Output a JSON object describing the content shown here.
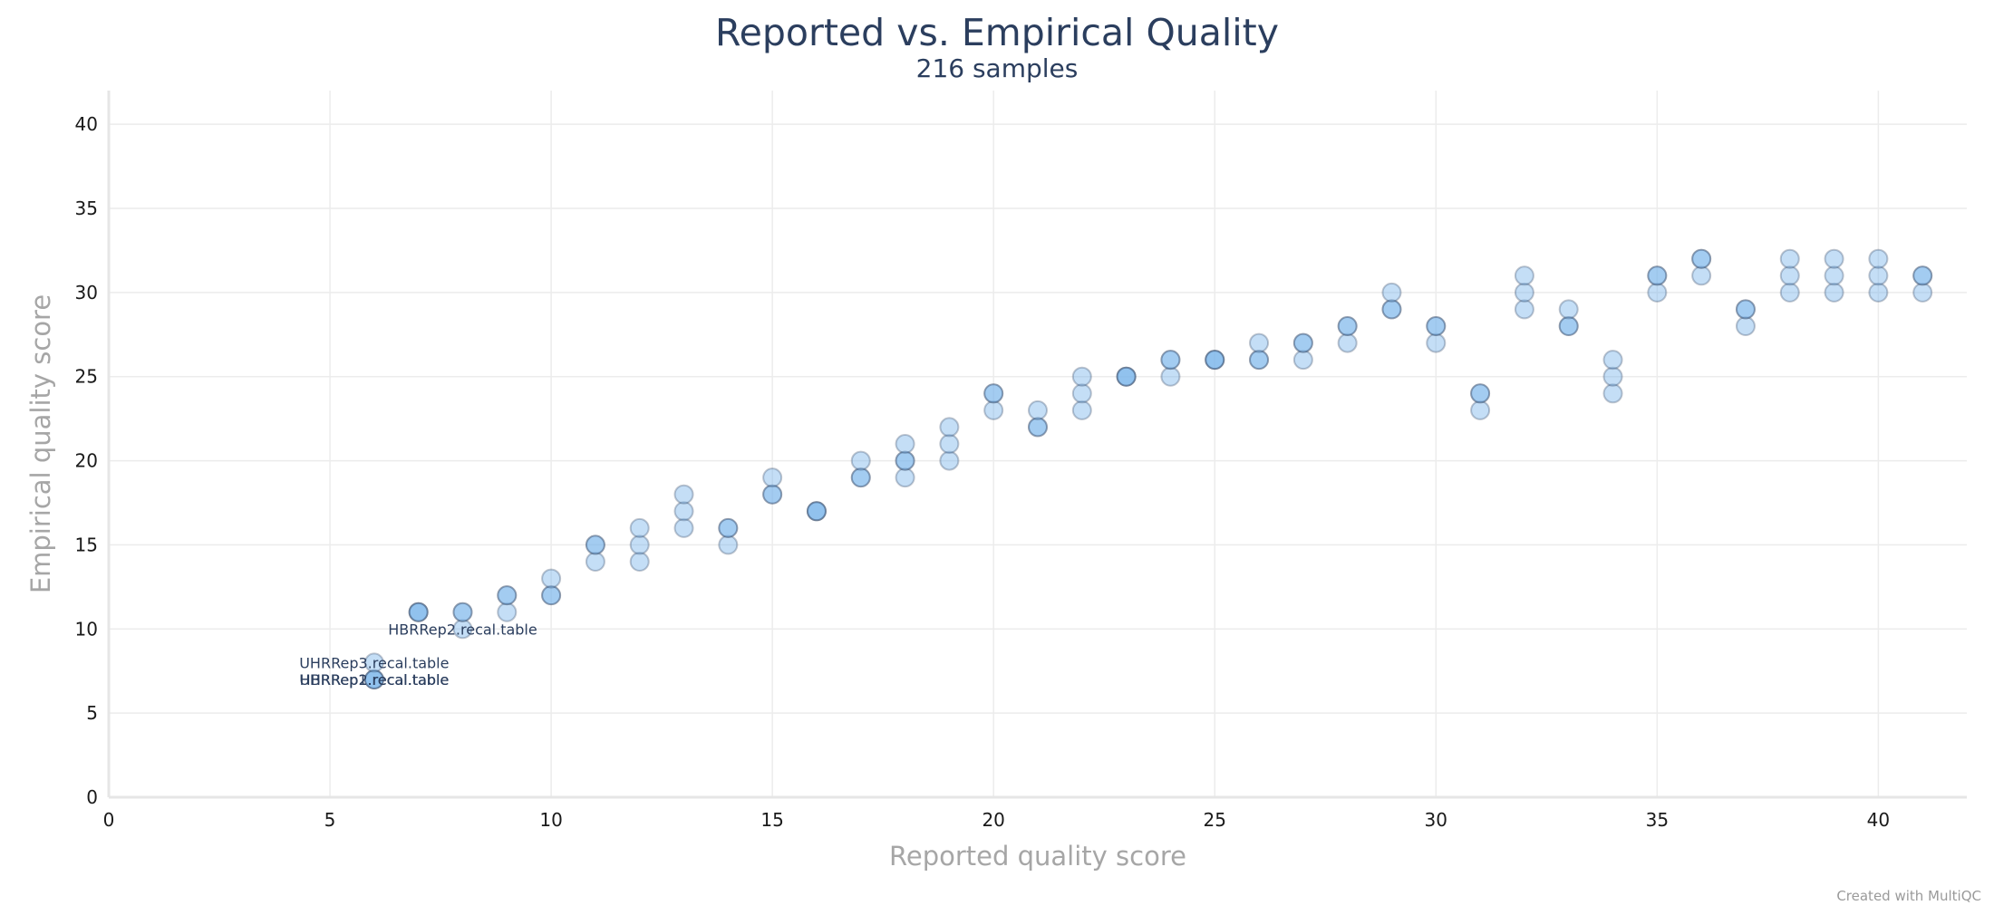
{
  "chart_data": {
    "type": "scatter",
    "title": "Reported vs. Empirical Quality",
    "subtitle": "216 samples",
    "xlabel": "Reported quality score",
    "ylabel": "Empirical quality score",
    "xlim": [
      0,
      42
    ],
    "ylim": [
      0,
      42
    ],
    "xticks": [
      0,
      5,
      10,
      15,
      20,
      25,
      30,
      35,
      40
    ],
    "yticks": [
      0,
      5,
      10,
      15,
      20,
      25,
      30,
      35,
      40
    ],
    "grid": true,
    "legend": "none",
    "marker_color": "#7cb5ec",
    "marker_edge_color": "#2b3e5e",
    "points": [
      [
        6,
        7
      ],
      [
        6,
        7
      ],
      [
        6,
        7
      ],
      [
        6,
        8
      ],
      [
        7,
        11
      ],
      [
        7,
        11
      ],
      [
        7,
        11
      ],
      [
        8,
        10
      ],
      [
        8,
        11
      ],
      [
        8,
        11
      ],
      [
        9,
        11
      ],
      [
        9,
        12
      ],
      [
        9,
        12
      ],
      [
        10,
        12
      ],
      [
        10,
        12
      ],
      [
        10,
        13
      ],
      [
        11,
        14
      ],
      [
        11,
        15
      ],
      [
        11,
        15
      ],
      [
        12,
        14
      ],
      [
        12,
        15
      ],
      [
        12,
        16
      ],
      [
        13,
        16
      ],
      [
        13,
        17
      ],
      [
        13,
        18
      ],
      [
        14,
        15
      ],
      [
        14,
        16
      ],
      [
        14,
        16
      ],
      [
        15,
        18
      ],
      [
        15,
        18
      ],
      [
        15,
        19
      ],
      [
        16,
        17
      ],
      [
        16,
        17
      ],
      [
        16,
        17
      ],
      [
        17,
        19
      ],
      [
        17,
        19
      ],
      [
        17,
        20
      ],
      [
        18,
        19
      ],
      [
        18,
        20
      ],
      [
        18,
        20
      ],
      [
        18,
        21
      ],
      [
        19,
        20
      ],
      [
        19,
        21
      ],
      [
        19,
        22
      ],
      [
        20,
        23
      ],
      [
        20,
        24
      ],
      [
        20,
        24
      ],
      [
        21,
        22
      ],
      [
        21,
        22
      ],
      [
        21,
        23
      ],
      [
        22,
        23
      ],
      [
        22,
        24
      ],
      [
        22,
        25
      ],
      [
        23,
        25
      ],
      [
        23,
        25
      ],
      [
        23,
        25
      ],
      [
        24,
        25
      ],
      [
        24,
        26
      ],
      [
        24,
        26
      ],
      [
        25,
        26
      ],
      [
        25,
        26
      ],
      [
        25,
        26
      ],
      [
        26,
        26
      ],
      [
        26,
        26
      ],
      [
        26,
        27
      ],
      [
        27,
        26
      ],
      [
        27,
        27
      ],
      [
        27,
        27
      ],
      [
        28,
        27
      ],
      [
        28,
        28
      ],
      [
        28,
        28
      ],
      [
        29,
        29
      ],
      [
        29,
        29
      ],
      [
        29,
        30
      ],
      [
        30,
        27
      ],
      [
        30,
        28
      ],
      [
        30,
        28
      ],
      [
        31,
        23
      ],
      [
        31,
        24
      ],
      [
        31,
        24
      ],
      [
        32,
        29
      ],
      [
        32,
        30
      ],
      [
        32,
        31
      ],
      [
        33,
        28
      ],
      [
        33,
        28
      ],
      [
        33,
        29
      ],
      [
        34,
        24
      ],
      [
        34,
        25
      ],
      [
        34,
        26
      ],
      [
        35,
        30
      ],
      [
        35,
        31
      ],
      [
        35,
        31
      ],
      [
        36,
        31
      ],
      [
        36,
        32
      ],
      [
        36,
        32
      ],
      [
        37,
        28
      ],
      [
        37,
        29
      ],
      [
        37,
        29
      ],
      [
        38,
        30
      ],
      [
        38,
        31
      ],
      [
        38,
        32
      ],
      [
        39,
        30
      ],
      [
        39,
        31
      ],
      [
        39,
        32
      ],
      [
        40,
        30
      ],
      [
        40,
        31
      ],
      [
        40,
        32
      ],
      [
        41,
        30
      ],
      [
        41,
        31
      ],
      [
        41,
        31
      ]
    ],
    "annotations": [
      {
        "text": "HBRRep2.recal.table",
        "x": 8,
        "y": 10
      },
      {
        "text": "UHRRep3.recal.table",
        "x": 6,
        "y": 8
      },
      {
        "text": "UHRRep2.recal.table",
        "x": 6,
        "y": 7
      },
      {
        "text": "HBRRep1.recal.table",
        "x": 6,
        "y": 7
      }
    ]
  },
  "credit": "Created with MultiQC"
}
